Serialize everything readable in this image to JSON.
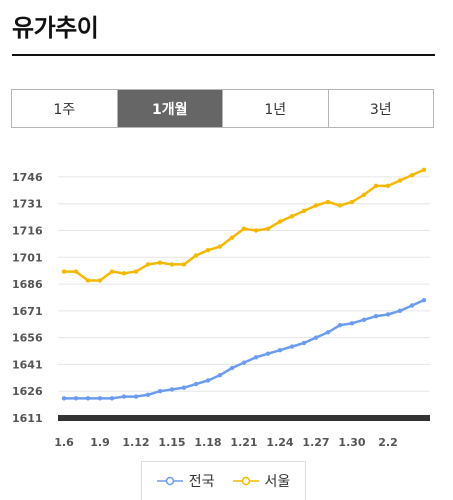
{
  "page_title": "유가추이",
  "tabs": [
    {
      "label": "1주",
      "active": false
    },
    {
      "label": "1개월",
      "active": true
    },
    {
      "label": "1년",
      "active": false
    },
    {
      "label": "3년",
      "active": false
    }
  ],
  "chart_data": {
    "type": "line",
    "title": "",
    "xlabel": "",
    "ylabel": "",
    "ylim": [
      1611,
      1751
    ],
    "y_ticks": [
      1611,
      1626,
      1641,
      1656,
      1671,
      1686,
      1701,
      1716,
      1731,
      1746
    ],
    "x_tick_labels": [
      "1.6",
      "1.9",
      "1.12",
      "1.15",
      "1.18",
      "1.21",
      "1.24",
      "1.27",
      "1.30",
      "2.2"
    ],
    "grid": true,
    "legend": "bottom",
    "x": [
      "1.6",
      "1.7",
      "1.8",
      "1.9",
      "1.10",
      "1.11",
      "1.12",
      "1.13",
      "1.14",
      "1.15",
      "1.16",
      "1.17",
      "1.18",
      "1.19",
      "1.20",
      "1.21",
      "1.22",
      "1.23",
      "1.24",
      "1.25",
      "1.26",
      "1.27",
      "1.28",
      "1.29",
      "1.30",
      "1.31",
      "2.1",
      "2.2",
      "2.3",
      "2.4",
      "2.5"
    ],
    "series": [
      {
        "name": "전국",
        "color": "#6b9cf0",
        "values": [
          1622,
          1622,
          1622,
          1622,
          1622,
          1623,
          1623,
          1624,
          1626,
          1627,
          1628,
          1630,
          1632,
          1635,
          1639,
          1642,
          1645,
          1647,
          1649,
          1651,
          1653,
          1656,
          1659,
          1663,
          1664,
          1666,
          1668,
          1669,
          1671,
          1674,
          1677
        ]
      },
      {
        "name": "서울",
        "color": "#f5b800",
        "values": [
          1693,
          1693,
          1688,
          1688,
          1693,
          1692,
          1693,
          1697,
          1698,
          1697,
          1697,
          1702,
          1705,
          1707,
          1712,
          1717,
          1716,
          1717,
          1721,
          1724,
          1727,
          1730,
          1732,
          1730,
          1732,
          1736,
          1741,
          1741,
          1744,
          1747,
          1750
        ]
      }
    ]
  }
}
